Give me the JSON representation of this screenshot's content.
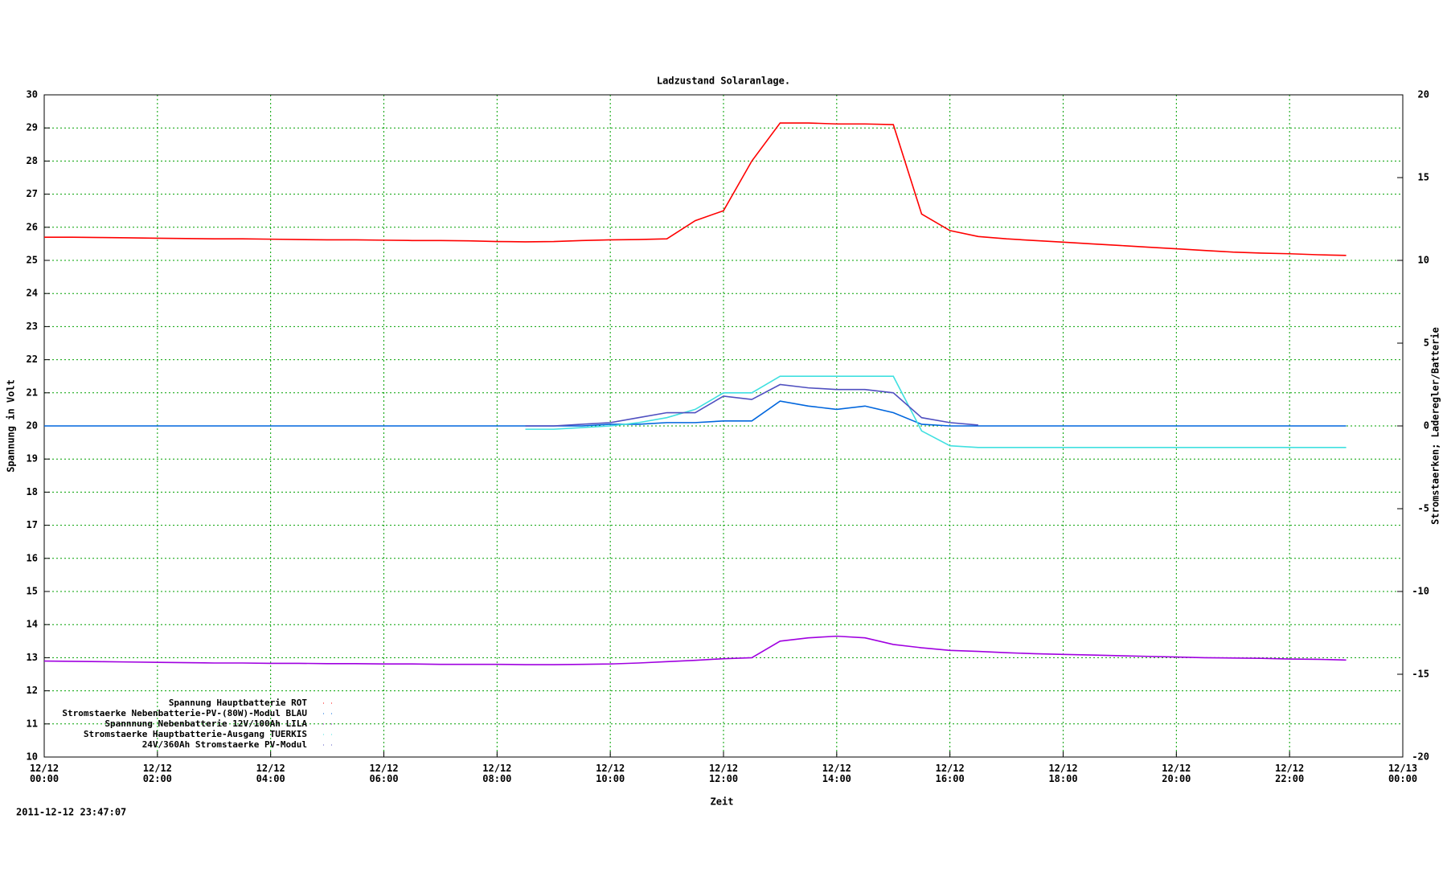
{
  "chart_data": {
    "type": "line",
    "title": "Ladzustand Solaranlage.",
    "x_label": "Zeit",
    "y_label": "Spannung in Volt",
    "y2_label": "Stromstaerken; Laderegler/Batterie",
    "timestamp": "2011-12-12 23:47:07",
    "grid": true,
    "legend": "lower left",
    "x": [
      "12/12 00:00",
      "12/12 00:30",
      "12/12 01:00",
      "12/12 01:30",
      "12/12 02:00",
      "12/12 02:30",
      "12/12 03:00",
      "12/12 03:30",
      "12/12 04:00",
      "12/12 04:30",
      "12/12 05:00",
      "12/12 05:30",
      "12/12 06:00",
      "12/12 06:30",
      "12/12 07:00",
      "12/12 07:30",
      "12/12 08:00",
      "12/12 08:30",
      "12/12 09:00",
      "12/12 09:30",
      "12/12 10:00",
      "12/12 10:30",
      "12/12 11:00",
      "12/12 11:30",
      "12/12 12:00",
      "12/12 12:30",
      "12/12 13:00",
      "12/12 13:30",
      "12/12 14:00",
      "12/12 14:30",
      "12/12 15:00",
      "12/12 15:30",
      "12/12 16:00",
      "12/12 16:30",
      "12/12 17:00",
      "12/12 17:30",
      "12/12 18:00",
      "12/12 18:30",
      "12/12 19:00",
      "12/12 19:30",
      "12/12 20:00",
      "12/12 20:30",
      "12/12 21:00",
      "12/12 21:30",
      "12/12 22:00",
      "12/12 22:30",
      "12/12 23:00"
    ],
    "xlim": [
      "12/12 00:00",
      "12/13 00:00"
    ],
    "xticks": [
      "12/12 00:00",
      "12/12 02:00",
      "12/12 04:00",
      "12/12 06:00",
      "12/12 08:00",
      "12/12 10:00",
      "12/12 12:00",
      "12/12 14:00",
      "12/12 16:00",
      "12/12 18:00",
      "12/12 20:00",
      "12/12 22:00",
      "12/13 00:00"
    ],
    "ylim": [
      10,
      30
    ],
    "yticks": [
      10,
      11,
      12,
      13,
      14,
      15,
      16,
      17,
      18,
      19,
      20,
      21,
      22,
      23,
      24,
      25,
      26,
      27,
      28,
      29,
      30
    ],
    "y2lim": [
      -20,
      20
    ],
    "y2ticks": [
      -20,
      -15,
      -10,
      -5,
      0,
      5,
      10,
      15,
      20
    ],
    "series": [
      {
        "name": "Spannung Hauptbatterie ROT",
        "color": "#ff0000",
        "axis": "y",
        "values": [
          25.7,
          25.7,
          25.69,
          25.68,
          25.67,
          25.66,
          25.65,
          25.65,
          25.64,
          25.63,
          25.62,
          25.62,
          25.61,
          25.6,
          25.6,
          25.59,
          25.57,
          25.56,
          25.57,
          25.6,
          25.62,
          25.63,
          25.65,
          26.2,
          26.5,
          28.0,
          29.15,
          29.15,
          29.12,
          29.12,
          29.1,
          26.4,
          25.9,
          25.72,
          25.65,
          25.6,
          25.55,
          25.5,
          25.45,
          25.4,
          25.35,
          25.3,
          25.25,
          25.22,
          25.2,
          25.17,
          25.15
        ]
      },
      {
        "name": "Stromstaerke Nebenbatterie-PV-(80W)-Modul BLAU",
        "color": "#0066dd",
        "axis": "y2",
        "values": [
          0,
          0,
          0,
          0,
          0,
          0,
          0,
          0,
          0,
          0,
          0,
          0,
          0,
          0,
          0,
          0,
          0,
          0,
          0,
          0,
          0.1,
          0.1,
          0.2,
          0.2,
          0.3,
          0.3,
          1.5,
          1.2,
          1.0,
          1.2,
          0.8,
          0.1,
          0,
          0,
          0,
          0,
          0,
          0,
          0,
          0,
          0,
          0,
          0,
          0,
          0,
          0,
          0
        ]
      },
      {
        "name": "Spannnung Nebenbatterie 12V/100Ah LILA",
        "color": "#a000e0",
        "axis": "y",
        "values": [
          12.9,
          12.89,
          12.88,
          12.87,
          12.86,
          12.85,
          12.84,
          12.84,
          12.83,
          12.83,
          12.82,
          12.82,
          12.81,
          12.81,
          12.8,
          12.8,
          12.8,
          12.79,
          12.79,
          12.8,
          12.81,
          12.84,
          12.88,
          12.92,
          12.97,
          13.0,
          13.5,
          13.6,
          13.65,
          13.6,
          13.4,
          13.3,
          13.22,
          13.19,
          13.15,
          13.12,
          13.1,
          13.08,
          13.06,
          13.04,
          13.02,
          13.0,
          12.99,
          12.98,
          12.96,
          12.95,
          12.93
        ]
      },
      {
        "name": "Stromstaerke Hauptbatterie-Ausgang TUERKIS",
        "color": "#40e0e0",
        "axis": "y2",
        "values": [
          null,
          null,
          null,
          null,
          null,
          null,
          null,
          null,
          null,
          null,
          null,
          null,
          null,
          null,
          null,
          null,
          null,
          -0.2,
          -0.2,
          -0.1,
          0,
          0.2,
          0.5,
          1.0,
          2.0,
          2.0,
          3.0,
          3.0,
          3.0,
          3.0,
          3.0,
          -0.3,
          -1.2,
          -1.3,
          -1.3,
          -1.3,
          -1.3,
          -1.3,
          -1.3,
          -1.3,
          -1.3,
          -1.3,
          -1.3,
          -1.3,
          -1.3,
          -1.3,
          -1.3
        ]
      },
      {
        "name": "24V/360Ah Stromstaerke PV-Modul",
        "color": "#5050c0",
        "axis": "y2",
        "values": [
          null,
          null,
          null,
          null,
          null,
          null,
          null,
          null,
          null,
          null,
          null,
          null,
          null,
          null,
          null,
          null,
          null,
          0,
          0,
          0.1,
          0.2,
          0.5,
          0.8,
          0.8,
          1.8,
          1.6,
          2.5,
          2.3,
          2.2,
          2.2,
          2.0,
          0.5,
          0.2,
          0.05,
          null,
          null,
          null,
          null,
          null,
          null,
          null,
          null,
          null,
          null,
          null,
          null,
          null
        ]
      }
    ]
  }
}
